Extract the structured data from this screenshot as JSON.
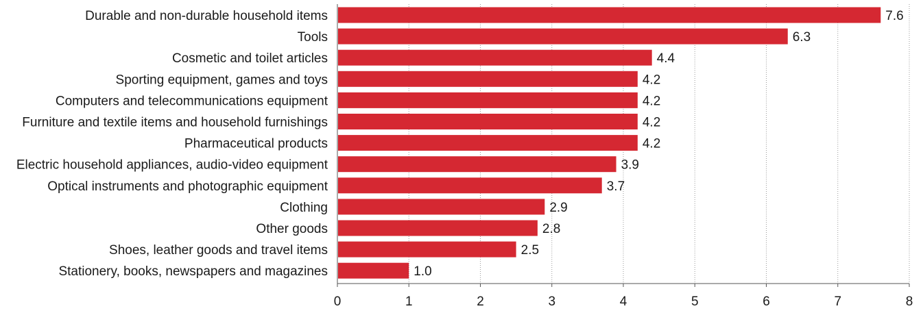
{
  "chart_data": {
    "type": "bar",
    "orientation": "horizontal",
    "categories": [
      "Durable and non-durable household items",
      "Tools",
      "Cosmetic and toilet articles",
      "Sporting equipment, games and toys",
      "Computers and telecommunications equipment",
      "Furniture and textile items and household furnishings",
      "Pharmaceutical products",
      "Electric household appliances, audio-video equipment",
      "Optical instruments and photographic equipment",
      "Clothing",
      "Other goods",
      "Shoes, leather goods and travel items",
      "Stationery, books, newspapers and magazines"
    ],
    "values": [
      7.6,
      6.3,
      4.4,
      4.2,
      4.2,
      4.2,
      4.2,
      3.9,
      3.7,
      2.9,
      2.8,
      2.5,
      1.0
    ],
    "value_labels": [
      "7.6",
      "6.3",
      "4.4",
      "4.2",
      "4.2",
      "4.2",
      "4.2",
      "3.9",
      "3.7",
      "2.9",
      "2.8",
      "2.5",
      "1.0"
    ],
    "xlim": [
      0,
      8
    ],
    "xticks": [
      0,
      1,
      2,
      3,
      4,
      5,
      6,
      7,
      8
    ],
    "xtick_labels": [
      "0",
      "1",
      "2",
      "3",
      "4",
      "5",
      "6",
      "7",
      "8"
    ],
    "title": "",
    "xlabel": "",
    "ylabel": "",
    "grid": "vertical dotted",
    "legend": "none",
    "bar_color": "#d52832"
  }
}
